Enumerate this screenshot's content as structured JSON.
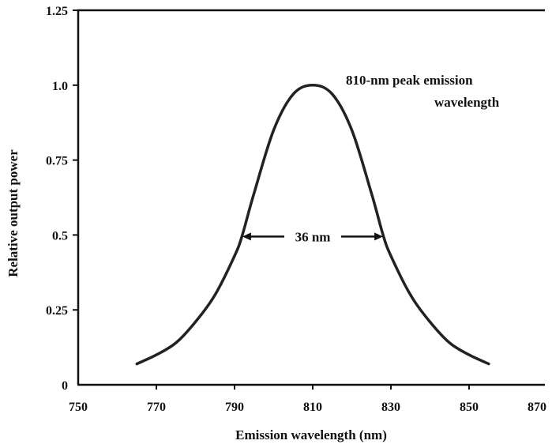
{
  "chart_data": {
    "type": "line",
    "xlabel": "Emission wavelength (nm)",
    "ylabel": "Relative output power",
    "xlim": [
      750,
      870
    ],
    "ylim": [
      0,
      1.25
    ],
    "x_ticks": [
      "750",
      "770",
      "790",
      "810",
      "830",
      "850",
      "870"
    ],
    "y_ticks": [
      "0",
      "0.25",
      "0.5",
      "0.75",
      "1.0",
      "1.25"
    ],
    "grid": false,
    "series": [
      {
        "x": [
          765,
          770,
          775,
          780,
          785,
          790,
          792,
          795,
          800,
          805,
          810,
          815,
          820,
          825,
          828,
          830,
          835,
          840,
          845,
          850,
          855
        ],
        "y": [
          0.07,
          0.1,
          0.14,
          0.21,
          0.3,
          0.43,
          0.5,
          0.64,
          0.85,
          0.97,
          1.0,
          0.97,
          0.85,
          0.64,
          0.5,
          0.43,
          0.3,
          0.21,
          0.14,
          0.1,
          0.07
        ]
      }
    ],
    "annotations": [
      {
        "text": "810-nm peak emission",
        "line": 1
      },
      {
        "text": "wavelength",
        "line": 2
      },
      {
        "text": "36 nm",
        "from_x": 792,
        "to_x": 828,
        "y": 0.5
      }
    ]
  }
}
